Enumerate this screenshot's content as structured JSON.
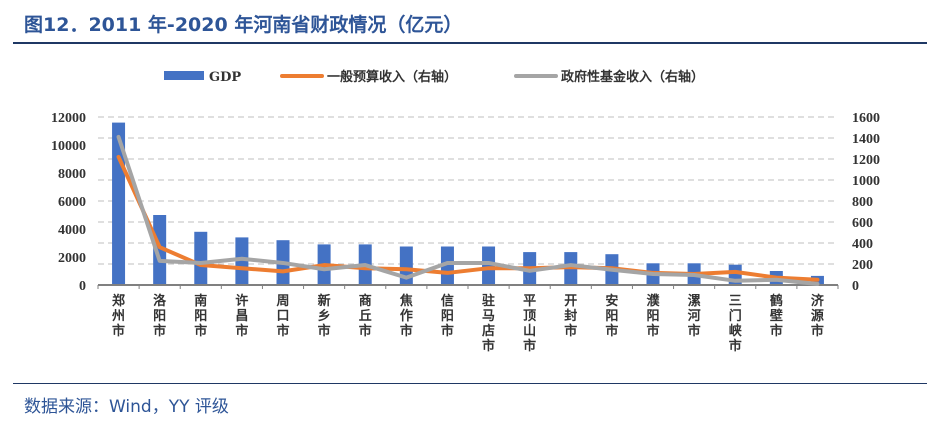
{
  "title": "图12．2011 年-2020 年河南省财政情况（亿元）",
  "source": "数据来源：Wind，YY 评级",
  "chart_data": {
    "type": "bar+line",
    "categories": [
      "郑州市",
      "洛阳市",
      "南阳市",
      "许昌市",
      "周口市",
      "新乡市",
      "商丘市",
      "焦作市",
      "信阳市",
      "驻马店市",
      "平顶山市",
      "开封市",
      "安阳市",
      "濮阳市",
      "漯河市",
      "三门峡市",
      "鹤壁市",
      "济源市"
    ],
    "series": [
      {
        "name": "GDP",
        "type": "bar",
        "axis": "left",
        "color": "#4472c4",
        "values": [
          11600,
          5000,
          3800,
          3400,
          3200,
          2900,
          2900,
          2750,
          2750,
          2750,
          2350,
          2350,
          2200,
          1550,
          1550,
          1450,
          1000,
          650
        ]
      },
      {
        "name": "一般预算收入（右轴）",
        "type": "line",
        "axis": "right",
        "color": "#ed7d31",
        "values": [
          1220,
          360,
          190,
          160,
          130,
          190,
          160,
          150,
          115,
          160,
          160,
          170,
          160,
          115,
          105,
          125,
          70,
          50
        ]
      },
      {
        "name": "政府性基金收入（右轴）",
        "type": "line",
        "axis": "right",
        "color": "#a5a5a5",
        "values": [
          1410,
          230,
          210,
          250,
          210,
          150,
          190,
          70,
          210,
          210,
          135,
          190,
          145,
          105,
          95,
          40,
          50,
          10
        ]
      }
    ],
    "yleft": {
      "range": [
        0,
        12000
      ],
      "ticks": [
        0,
        2000,
        4000,
        6000,
        8000,
        10000,
        12000
      ]
    },
    "yright": {
      "range": [
        0,
        1600
      ],
      "ticks": [
        0,
        200,
        400,
        600,
        800,
        1000,
        1200,
        1400,
        1600
      ]
    },
    "grid": true,
    "legend": "top"
  }
}
